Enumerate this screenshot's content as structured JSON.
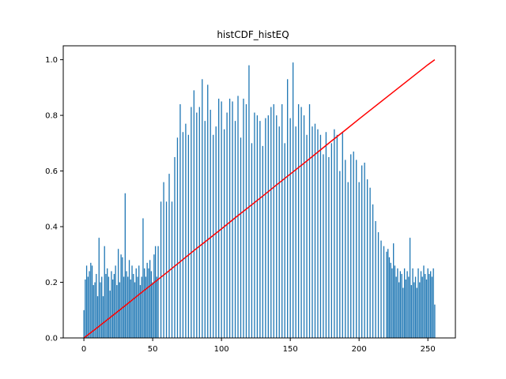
{
  "chart_data": {
    "type": "bar",
    "title": "histCDF_histEQ",
    "xlabel": "",
    "ylabel": "",
    "xlim": [
      -15,
      270
    ],
    "ylim": [
      0,
      1.05
    ],
    "xticks": [
      0,
      50,
      100,
      150,
      200,
      250
    ],
    "yticks": [
      0.0,
      0.2,
      0.4,
      0.6,
      0.8,
      1.0
    ],
    "ytick_labels": [
      "0.0",
      "0.2",
      "0.4",
      "0.6",
      "0.8",
      "1.0"
    ],
    "grid": false,
    "bar_color": "#1f77b4",
    "line_color": "#ff0000",
    "bars": {
      "x": [
        0,
        1,
        2,
        3,
        4,
        5,
        6,
        7,
        8,
        9,
        10,
        11,
        12,
        13,
        14,
        15,
        16,
        17,
        18,
        19,
        20,
        21,
        22,
        23,
        24,
        25,
        26,
        27,
        28,
        29,
        30,
        31,
        32,
        33,
        34,
        35,
        36,
        37,
        38,
        39,
        40,
        41,
        42,
        43,
        44,
        45,
        46,
        47,
        48,
        49,
        50,
        51,
        52,
        53,
        54,
        56,
        58,
        60,
        62,
        64,
        66,
        68,
        70,
        72,
        74,
        76,
        78,
        80,
        82,
        84,
        86,
        88,
        90,
        92,
        94,
        96,
        98,
        100,
        102,
        104,
        106,
        108,
        110,
        112,
        114,
        116,
        118,
        120,
        122,
        124,
        126,
        128,
        130,
        132,
        134,
        136,
        138,
        140,
        142,
        144,
        146,
        148,
        150,
        152,
        154,
        156,
        158,
        160,
        162,
        164,
        166,
        168,
        170,
        172,
        174,
        176,
        178,
        180,
        182,
        184,
        186,
        188,
        190,
        192,
        194,
        196,
        198,
        200,
        202,
        204,
        206,
        208,
        210,
        212,
        214,
        216,
        218,
        220,
        221,
        222,
        223,
        224,
        225,
        226,
        227,
        228,
        229,
        230,
        231,
        232,
        233,
        234,
        235,
        236,
        237,
        238,
        239,
        240,
        241,
        242,
        243,
        244,
        245,
        246,
        247,
        248,
        249,
        250,
        251,
        252,
        253,
        254,
        255
      ],
      "values": [
        0.1,
        0.21,
        0.26,
        0.22,
        0.24,
        0.27,
        0.26,
        0.19,
        0.2,
        0.23,
        0.15,
        0.36,
        0.2,
        0.22,
        0.15,
        0.33,
        0.23,
        0.25,
        0.22,
        0.17,
        0.24,
        0.21,
        0.23,
        0.26,
        0.19,
        0.32,
        0.2,
        0.3,
        0.29,
        0.22,
        0.52,
        0.24,
        0.22,
        0.28,
        0.21,
        0.26,
        0.23,
        0.2,
        0.25,
        0.22,
        0.26,
        0.19,
        0.22,
        0.43,
        0.25,
        0.22,
        0.27,
        0.25,
        0.28,
        0.24,
        0.2,
        0.3,
        0.33,
        0.22,
        0.33,
        0.49,
        0.56,
        0.49,
        0.59,
        0.49,
        0.65,
        0.72,
        0.84,
        0.74,
        0.77,
        0.73,
        0.83,
        0.89,
        0.81,
        0.83,
        0.93,
        0.78,
        0.91,
        0.82,
        0.73,
        0.76,
        0.86,
        0.85,
        0.75,
        0.81,
        0.86,
        0.85,
        0.78,
        0.87,
        0.72,
        0.86,
        0.84,
        0.98,
        0.7,
        0.81,
        0.8,
        0.78,
        0.69,
        0.79,
        0.8,
        0.83,
        0.84,
        0.8,
        0.76,
        0.84,
        0.7,
        0.93,
        0.79,
        0.99,
        0.76,
        0.84,
        0.83,
        0.8,
        0.73,
        0.84,
        0.76,
        0.77,
        0.75,
        0.73,
        0.66,
        0.74,
        0.65,
        0.7,
        0.75,
        0.73,
        0.6,
        0.74,
        0.64,
        0.56,
        0.66,
        0.67,
        0.64,
        0.56,
        0.62,
        0.63,
        0.57,
        0.54,
        0.48,
        0.42,
        0.38,
        0.35,
        0.33,
        0.31,
        0.32,
        0.29,
        0.27,
        0.25,
        0.34,
        0.26,
        0.22,
        0.25,
        0.2,
        0.24,
        0.23,
        0.18,
        0.25,
        0.21,
        0.24,
        0.22,
        0.36,
        0.19,
        0.25,
        0.2,
        0.22,
        0.18,
        0.25,
        0.2,
        0.24,
        0.22,
        0.26,
        0.23,
        0.21,
        0.25,
        0.23,
        0.24,
        0.22,
        0.25,
        0.12
      ]
    },
    "cdf": {
      "x": [
        0,
        10,
        20,
        30,
        40,
        50,
        60,
        70,
        80,
        90,
        100,
        110,
        120,
        130,
        140,
        150,
        160,
        170,
        180,
        190,
        200,
        210,
        220,
        230,
        240,
        250,
        255
      ],
      "y": [
        0.0,
        0.038,
        0.077,
        0.116,
        0.156,
        0.195,
        0.234,
        0.274,
        0.314,
        0.353,
        0.392,
        0.432,
        0.471,
        0.51,
        0.55,
        0.589,
        0.628,
        0.668,
        0.708,
        0.747,
        0.787,
        0.826,
        0.865,
        0.904,
        0.943,
        0.982,
        1.0
      ]
    }
  }
}
